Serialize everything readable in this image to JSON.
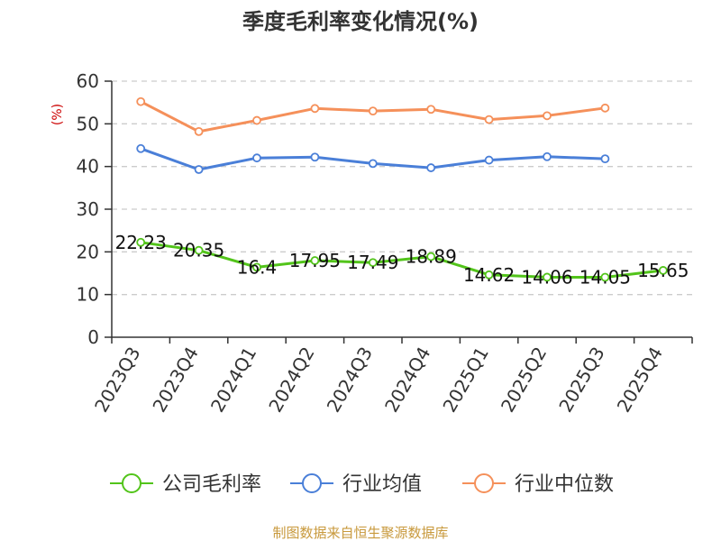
{
  "chart_data": {
    "type": "line",
    "title": "季度毛利率变化情况(%)",
    "ylabel": "(%)",
    "ylim": [
      0,
      60
    ],
    "yticks": [
      0,
      10,
      20,
      30,
      40,
      50,
      60
    ],
    "grid": true,
    "legend_position": "bottom",
    "categories": [
      "2023Q3",
      "2023Q4",
      "2024Q1",
      "2024Q2",
      "2024Q3",
      "2024Q4",
      "2025Q1",
      "2025Q2",
      "2025Q3",
      "2025Q4"
    ],
    "series": [
      {
        "name": "公司毛利率",
        "color": "#52c41a",
        "values": [
          22.23,
          20.35,
          16.4,
          17.95,
          17.49,
          18.89,
          14.62,
          14.06,
          14.05,
          15.65
        ],
        "labels": [
          "22.23",
          "20.35",
          "16.4",
          "17.95",
          "17.49",
          "18.89",
          "14.62",
          "14.06",
          "14.05",
          "15.65"
        ]
      },
      {
        "name": "行业均值",
        "color": "#4a7fd8",
        "values": [
          44.2,
          39.3,
          42.0,
          42.2,
          40.7,
          39.7,
          41.5,
          42.3,
          41.8,
          null
        ]
      },
      {
        "name": "行业中位数",
        "color": "#f5905a",
        "values": [
          55.2,
          48.2,
          50.8,
          53.6,
          53.0,
          53.4,
          51.0,
          51.9,
          53.7,
          null
        ]
      }
    ]
  },
  "source": "制图数据来自恒生聚源数据库",
  "colors": {
    "unit_label": "#cc0000",
    "source_text": "#c8993c",
    "grid": "#cccccc",
    "axis": "#333333"
  }
}
